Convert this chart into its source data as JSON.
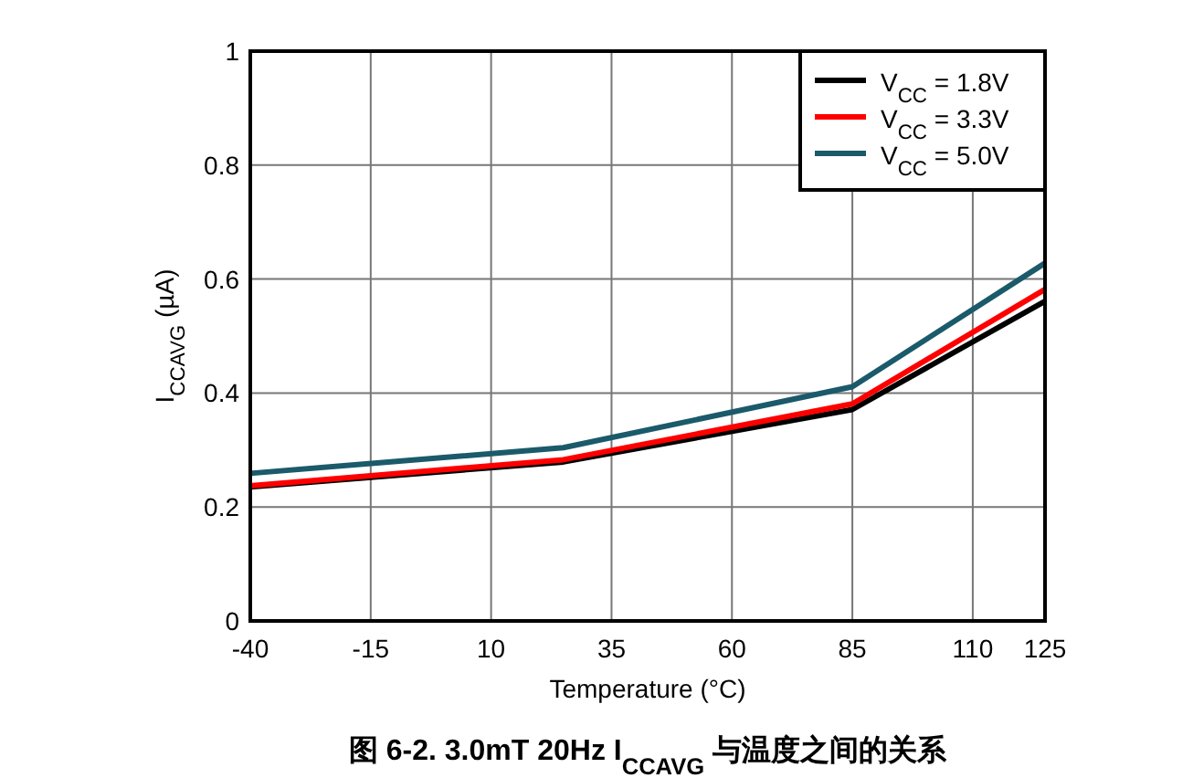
{
  "chart_data": {
    "type": "line",
    "title": "图 6-2. 3.0mT 20Hz I$_{CCAVG}$ 与温度之间的关系",
    "xlabel": "Temperature (°C)",
    "ylabel": "I$_{CCAVG}$ (µA)",
    "xlim": [
      -40,
      125
    ],
    "xticks": [
      -40,
      -15,
      10,
      35,
      60,
      85,
      110,
      125
    ],
    "ylim": [
      0,
      1
    ],
    "yticks": [
      0,
      0.2,
      0.4,
      0.6,
      0.8,
      1
    ],
    "grid": true,
    "legend": "top right",
    "marker": "none",
    "line_style": "solid",
    "series": [
      {
        "name": "V$_{CC}$ = 1.8V",
        "color": "#000000",
        "x": [
          -40,
          25,
          85,
          125
        ],
        "values": [
          0.235,
          0.279,
          0.371,
          0.561
        ]
      },
      {
        "name": "V$_{CC}$ = 3.3V",
        "color": "#ff0000",
        "x": [
          -40,
          25,
          85,
          125
        ],
        "values": [
          0.237,
          0.283,
          0.381,
          0.582
        ]
      },
      {
        "name": "V$_{CC}$ = 5.0V",
        "color": "#1a5a6a",
        "x": [
          -40,
          25,
          85,
          125
        ],
        "values": [
          0.259,
          0.304,
          0.411,
          0.628
        ]
      }
    ]
  }
}
